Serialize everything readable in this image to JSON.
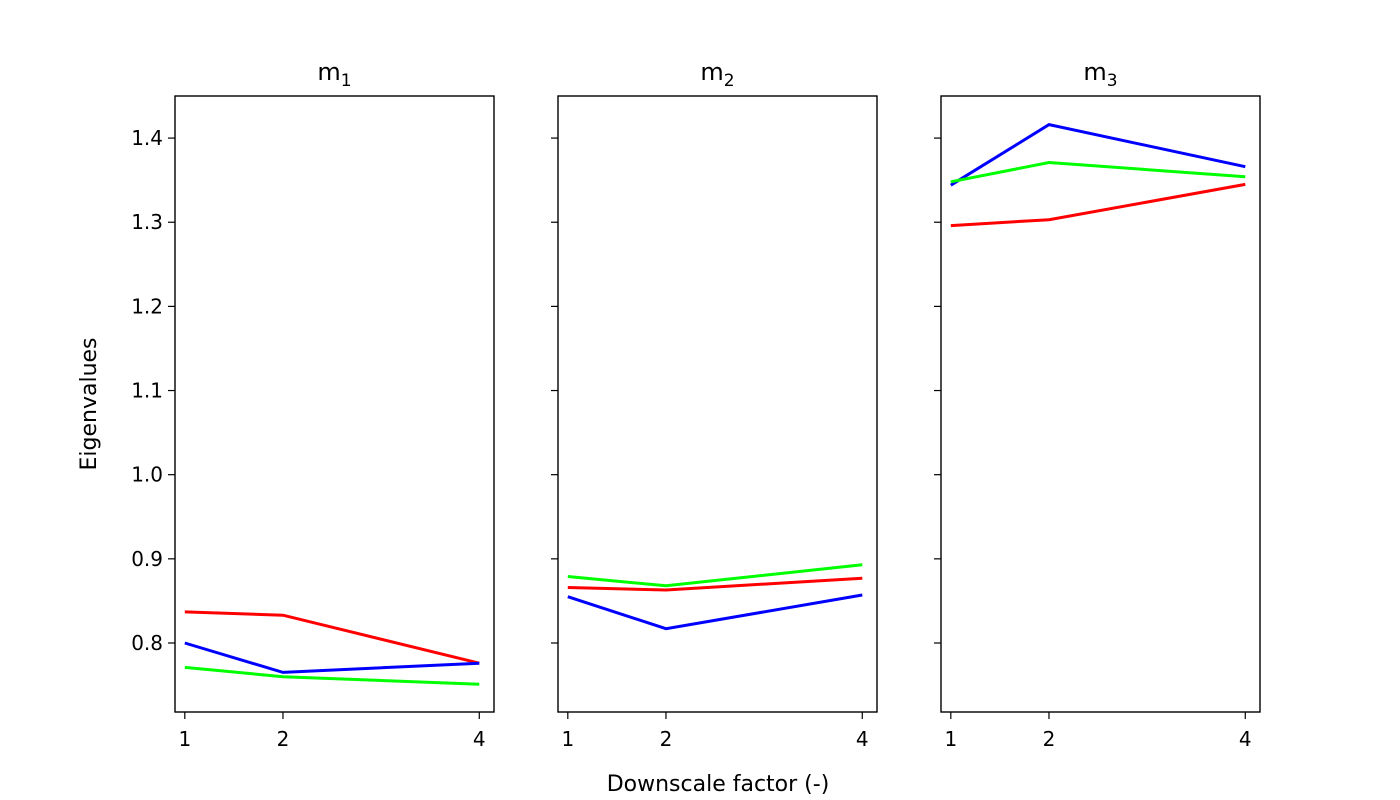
{
  "figure": {
    "ylabel": "Eigenvalues",
    "xlabel": "Downscale factor (-)"
  },
  "chart_data": [
    {
      "type": "line",
      "title": "m",
      "title_sub": "1",
      "x": [
        1,
        2,
        4
      ],
      "xticks": [
        1,
        2,
        4
      ],
      "xlim": [
        0.9,
        4.15
      ],
      "ylim": [
        0.718,
        1.45
      ],
      "yticks": [
        0.8,
        0.9,
        1.0,
        1.1,
        1.2,
        1.3,
        1.4
      ],
      "ytick_labels": [
        "0.8",
        "0.9",
        "1.0",
        "1.1",
        "1.2",
        "1.3",
        "1.4"
      ],
      "show_ytick_labels": true,
      "series": [
        {
          "color": "#ff0000",
          "values": [
            0.837,
            0.833,
            0.776
          ]
        },
        {
          "color": "#0000ff",
          "values": [
            0.8,
            0.765,
            0.776
          ]
        },
        {
          "color": "#00ff00",
          "values": [
            0.771,
            0.76,
            0.751
          ]
        }
      ]
    },
    {
      "type": "line",
      "title": "m",
      "title_sub": "2",
      "x": [
        1,
        2,
        4
      ],
      "xticks": [
        1,
        2,
        4
      ],
      "xlim": [
        0.9,
        4.15
      ],
      "ylim": [
        0.718,
        1.45
      ],
      "yticks": [
        0.8,
        0.9,
        1.0,
        1.1,
        1.2,
        1.3,
        1.4
      ],
      "ytick_labels": [
        "0.8",
        "0.9",
        "1.0",
        "1.1",
        "1.2",
        "1.3",
        "1.4"
      ],
      "show_ytick_labels": false,
      "series": [
        {
          "color": "#00ff00",
          "values": [
            0.879,
            0.868,
            0.893
          ]
        },
        {
          "color": "#ff0000",
          "values": [
            0.866,
            0.863,
            0.877
          ]
        },
        {
          "color": "#0000ff",
          "values": [
            0.855,
            0.817,
            0.857
          ]
        }
      ]
    },
    {
      "type": "line",
      "title": "m",
      "title_sub": "3",
      "x": [
        1,
        2,
        4
      ],
      "xticks": [
        1,
        2,
        4
      ],
      "xlim": [
        0.9,
        4.15
      ],
      "ylim": [
        0.718,
        1.45
      ],
      "yticks": [
        0.8,
        0.9,
        1.0,
        1.1,
        1.2,
        1.3,
        1.4
      ],
      "ytick_labels": [
        "0.8",
        "0.9",
        "1.0",
        "1.1",
        "1.2",
        "1.3",
        "1.4"
      ],
      "show_ytick_labels": false,
      "series": [
        {
          "color": "#0000ff",
          "values": [
            1.344,
            1.416,
            1.366
          ]
        },
        {
          "color": "#00ff00",
          "values": [
            1.348,
            1.371,
            1.354
          ]
        },
        {
          "color": "#ff0000",
          "values": [
            1.296,
            1.303,
            1.345
          ]
        }
      ]
    }
  ]
}
